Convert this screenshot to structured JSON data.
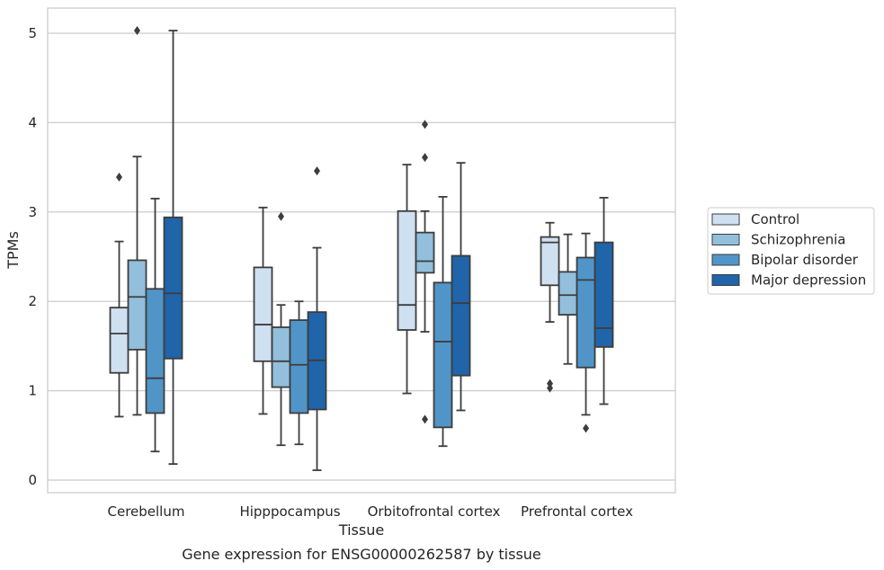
{
  "chart_data": {
    "type": "boxplot",
    "title": "",
    "caption": "Gene expression for ENSG00000262587 by tissue",
    "xlabel": "Tissue",
    "ylabel": "TPMs",
    "ylim": [
      -0.13,
      5.28
    ],
    "yticks": [
      0,
      1,
      2,
      3,
      4,
      5
    ],
    "grid": "horizontal",
    "legend_position": "right",
    "categories": [
      "Cerebellum",
      "Hipppocampus",
      "Orbitofrontal cortex",
      "Prefrontal cortex"
    ],
    "series": [
      {
        "name": "Control",
        "color": "#cfe0f1",
        "boxes": [
          {
            "whisker_low": 0.71,
            "q1": 1.2,
            "median": 1.64,
            "q3": 1.93,
            "whisker_high": 2.67,
            "outliers": [
              3.39
            ]
          },
          {
            "whisker_low": 0.74,
            "q1": 1.33,
            "median": 1.74,
            "q3": 2.38,
            "whisker_high": 3.05,
            "outliers": []
          },
          {
            "whisker_low": 0.97,
            "q1": 1.68,
            "median": 1.96,
            "q3": 3.01,
            "whisker_high": 3.53,
            "outliers": []
          },
          {
            "whisker_low": 1.77,
            "q1": 2.18,
            "median": 2.66,
            "q3": 2.72,
            "whisker_high": 2.88,
            "outliers": [
              1.08,
              1.03
            ]
          }
        ]
      },
      {
        "name": "Schizophrenia",
        "color": "#92bfdb",
        "boxes": [
          {
            "whisker_low": 0.73,
            "q1": 1.46,
            "median": 2.05,
            "q3": 2.46,
            "whisker_high": 3.62,
            "outliers": [
              5.03
            ]
          },
          {
            "whisker_low": 0.39,
            "q1": 1.04,
            "median": 1.33,
            "q3": 1.71,
            "whisker_high": 1.96,
            "outliers": [
              2.95
            ]
          },
          {
            "whisker_low": 1.66,
            "q1": 2.32,
            "median": 2.45,
            "q3": 2.77,
            "whisker_high": 3.01,
            "outliers": [
              3.61,
              3.98,
              0.68
            ]
          },
          {
            "whisker_low": 1.3,
            "q1": 1.85,
            "median": 2.07,
            "q3": 2.33,
            "whisker_high": 2.75,
            "outliers": []
          }
        ]
      },
      {
        "name": "Bipolar disorder",
        "color": "#5195c8",
        "boxes": [
          {
            "whisker_low": 0.32,
            "q1": 0.75,
            "median": 1.14,
            "q3": 2.14,
            "whisker_high": 3.15,
            "outliers": []
          },
          {
            "whisker_low": 0.4,
            "q1": 0.75,
            "median": 1.29,
            "q3": 1.79,
            "whisker_high": 2.0,
            "outliers": []
          },
          {
            "whisker_low": 0.38,
            "q1": 0.59,
            "median": 1.55,
            "q3": 2.21,
            "whisker_high": 3.17,
            "outliers": []
          },
          {
            "whisker_low": 0.73,
            "q1": 1.26,
            "median": 2.24,
            "q3": 2.49,
            "whisker_high": 2.76,
            "outliers": [
              0.58
            ]
          }
        ]
      },
      {
        "name": "Major depression",
        "color": "#2064a9",
        "boxes": [
          {
            "whisker_low": 0.18,
            "q1": 1.36,
            "median": 2.09,
            "q3": 2.94,
            "whisker_high": 5.03,
            "outliers": []
          },
          {
            "whisker_low": 0.11,
            "q1": 0.79,
            "median": 1.34,
            "q3": 1.88,
            "whisker_high": 2.6,
            "outliers": [
              3.46
            ]
          },
          {
            "whisker_low": 0.78,
            "q1": 1.17,
            "median": 1.98,
            "q3": 2.51,
            "whisker_high": 3.55,
            "outliers": []
          },
          {
            "whisker_low": 0.85,
            "q1": 1.49,
            "median": 1.7,
            "q3": 2.66,
            "whisker_high": 3.16,
            "outliers": []
          }
        ]
      }
    ]
  },
  "colors": {
    "grid": "#cccccc",
    "frame": "#cccccc",
    "box_edge": "#3d3d3d"
  }
}
